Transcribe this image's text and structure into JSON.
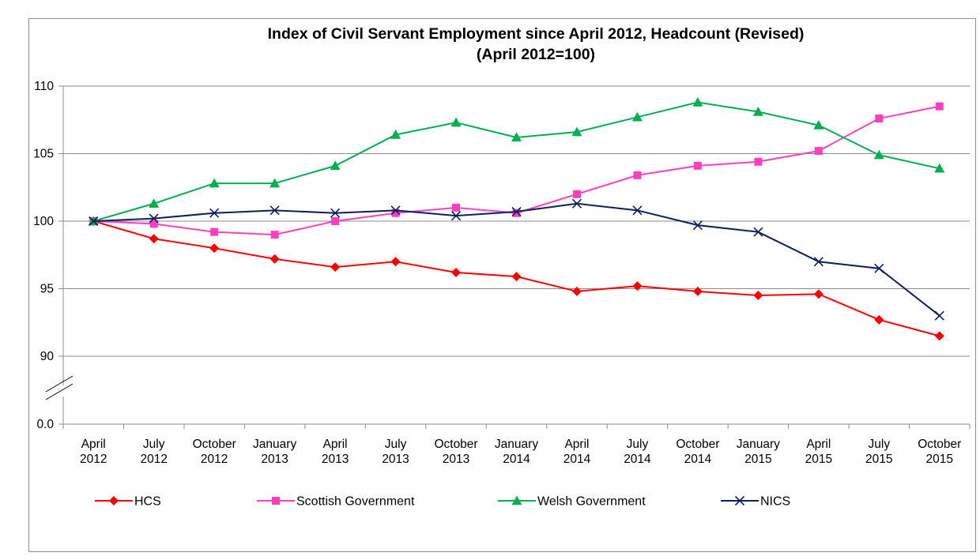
{
  "chart_data": {
    "type": "line",
    "title": "Index of Civil Servant Employment since April 2012, Headcount (Revised)",
    "subtitle": "(April 2012=100)",
    "categories": [
      [
        "April",
        "2012"
      ],
      [
        "July",
        "2012"
      ],
      [
        "October",
        "2012"
      ],
      [
        "January",
        "2013"
      ],
      [
        "April",
        "2013"
      ],
      [
        "July",
        "2013"
      ],
      [
        "October",
        "2013"
      ],
      [
        "January",
        "2014"
      ],
      [
        "April",
        "2014"
      ],
      [
        "July",
        "2014"
      ],
      [
        "October",
        "2014"
      ],
      [
        "January",
        "2015"
      ],
      [
        "April",
        "2015"
      ],
      [
        "July",
        "2015"
      ],
      [
        "October",
        "2015"
      ]
    ],
    "y_ticks": [
      "110",
      "105",
      "100",
      "95",
      "90",
      "0.0"
    ],
    "ylim": [
      90,
      110
    ],
    "axis_break": true,
    "grid": true,
    "legend_position": "bottom",
    "series": [
      {
        "name": "HCS",
        "color": "#ff0000",
        "marker": "diamond",
        "values": [
          100,
          98.7,
          98.0,
          97.2,
          96.6,
          97.0,
          96.2,
          95.9,
          94.8,
          95.2,
          94.8,
          94.5,
          94.6,
          92.7,
          91.5
        ]
      },
      {
        "name": "Scottish Government",
        "color": "#ff3fbf",
        "marker": "square",
        "values": [
          100,
          99.8,
          99.2,
          99.0,
          100.0,
          100.6,
          101.0,
          100.6,
          102.0,
          103.4,
          104.1,
          104.4,
          105.2,
          107.6,
          108.5
        ]
      },
      {
        "name": "Welsh Government",
        "color": "#00b050",
        "marker": "triangle",
        "values": [
          100,
          101.3,
          102.8,
          102.8,
          104.1,
          106.4,
          107.3,
          106.2,
          106.6,
          107.7,
          108.8,
          108.1,
          107.1,
          104.9,
          103.9
        ]
      },
      {
        "name": "NICS",
        "color": "#0d1f5c",
        "marker": "x",
        "values": [
          100,
          100.2,
          100.6,
          100.8,
          100.6,
          100.8,
          100.4,
          100.7,
          101.3,
          100.8,
          99.7,
          99.2,
          97.0,
          96.5,
          93.0
        ]
      }
    ]
  }
}
